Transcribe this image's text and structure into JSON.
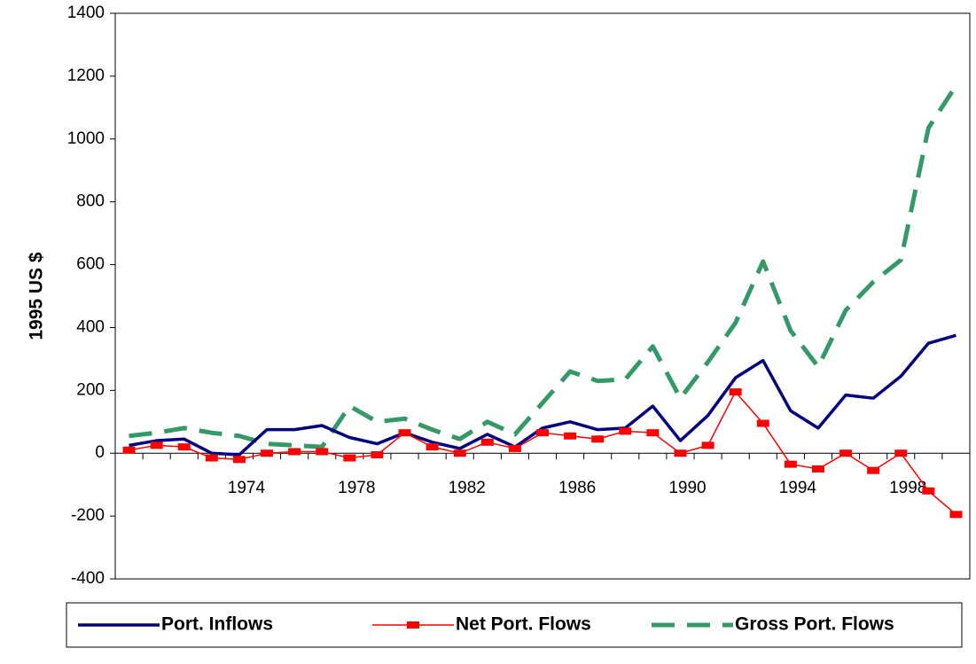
{
  "chart_data": {
    "type": "line",
    "y_label": "1995 US $",
    "categories": [
      null,
      null,
      null,
      null,
      "1974",
      null,
      null,
      null,
      "1978",
      null,
      null,
      null,
      "1982",
      null,
      null,
      null,
      "1986",
      null,
      null,
      null,
      "1990",
      null,
      null,
      null,
      "1994",
      null,
      null,
      null,
      "1998",
      null,
      null
    ],
    "series": [
      {
        "name": "Port. Inflows",
        "color": "#000080",
        "style": "solid",
        "values": [
          25,
          40,
          45,
          0,
          -5,
          75,
          75,
          88,
          50,
          30,
          65,
          35,
          15,
          60,
          20,
          80,
          100,
          75,
          80,
          150,
          40,
          120,
          240,
          295,
          135,
          80,
          185,
          175,
          245,
          350,
          375
        ]
      },
      {
        "name": "Net Port. Flows",
        "color": "#ff0000",
        "style": "marker",
        "values": [
          10,
          25,
          20,
          -15,
          -20,
          0,
          5,
          5,
          -15,
          -5,
          65,
          20,
          0,
          35,
          15,
          65,
          55,
          45,
          70,
          65,
          0,
          25,
          195,
          95,
          -35,
          -50,
          0,
          -55,
          0,
          -120,
          -195
        ]
      },
      {
        "name": "Gross Port. Flows",
        "color": "#339966",
        "style": "dashed",
        "values": [
          55,
          65,
          80,
          65,
          55,
          30,
          25,
          20,
          150,
          100,
          110,
          75,
          45,
          100,
          60,
          160,
          260,
          230,
          235,
          340,
          175,
          290,
          415,
          610,
          390,
          275,
          455,
          545,
          615,
          1035,
          1170
        ]
      }
    ],
    "ylim": [
      -400,
      1400
    ],
    "yticks": [
      -400,
      -200,
      0,
      200,
      400,
      600,
      800,
      1000,
      1200,
      1400
    ]
  }
}
